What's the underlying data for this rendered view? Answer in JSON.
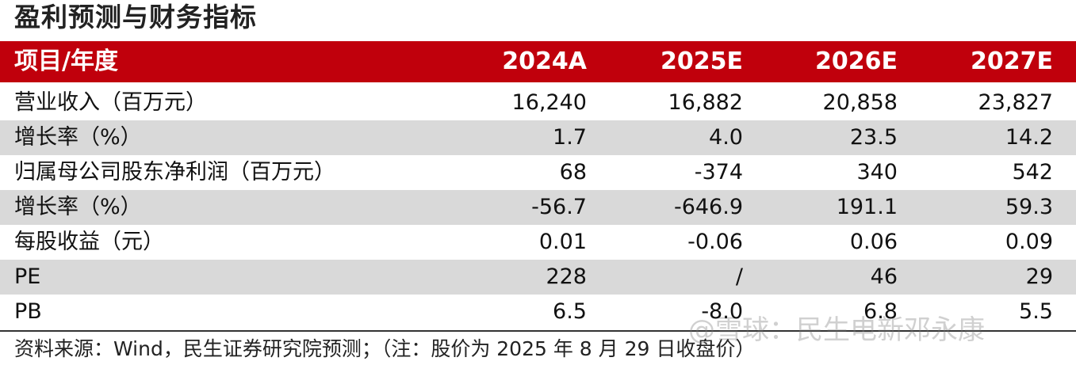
{
  "title": "盈利预测与财务指标",
  "table": {
    "header": [
      "项目/年度",
      "2024A",
      "2025E",
      "2026E",
      "2027E"
    ],
    "rows": [
      [
        "营业收入（百万元）",
        "16,240",
        "16,882",
        "20,858",
        "23,827"
      ],
      [
        "增长率（%）",
        "1.7",
        "4.0",
        "23.5",
        "14.2"
      ],
      [
        "归属母公司股东净利润（百万元）",
        "68",
        "-374",
        "340",
        "542"
      ],
      [
        "增长率（%）",
        "-56.7",
        "-646.9",
        "191.1",
        "59.3"
      ],
      [
        "每股收益（元）",
        "0.01",
        "-0.06",
        "0.06",
        "0.09"
      ],
      [
        "PE",
        "228",
        "/",
        "46",
        "29"
      ],
      [
        "PB",
        "6.5",
        "-8.0",
        "6.8",
        "5.5"
      ]
    ]
  },
  "source": "资料来源：Wind，民生证券研究院预测；（注：股价为 2025 年 8 月 29 日收盘价）",
  "watermark": "@雪球：民生电新邓永康"
}
